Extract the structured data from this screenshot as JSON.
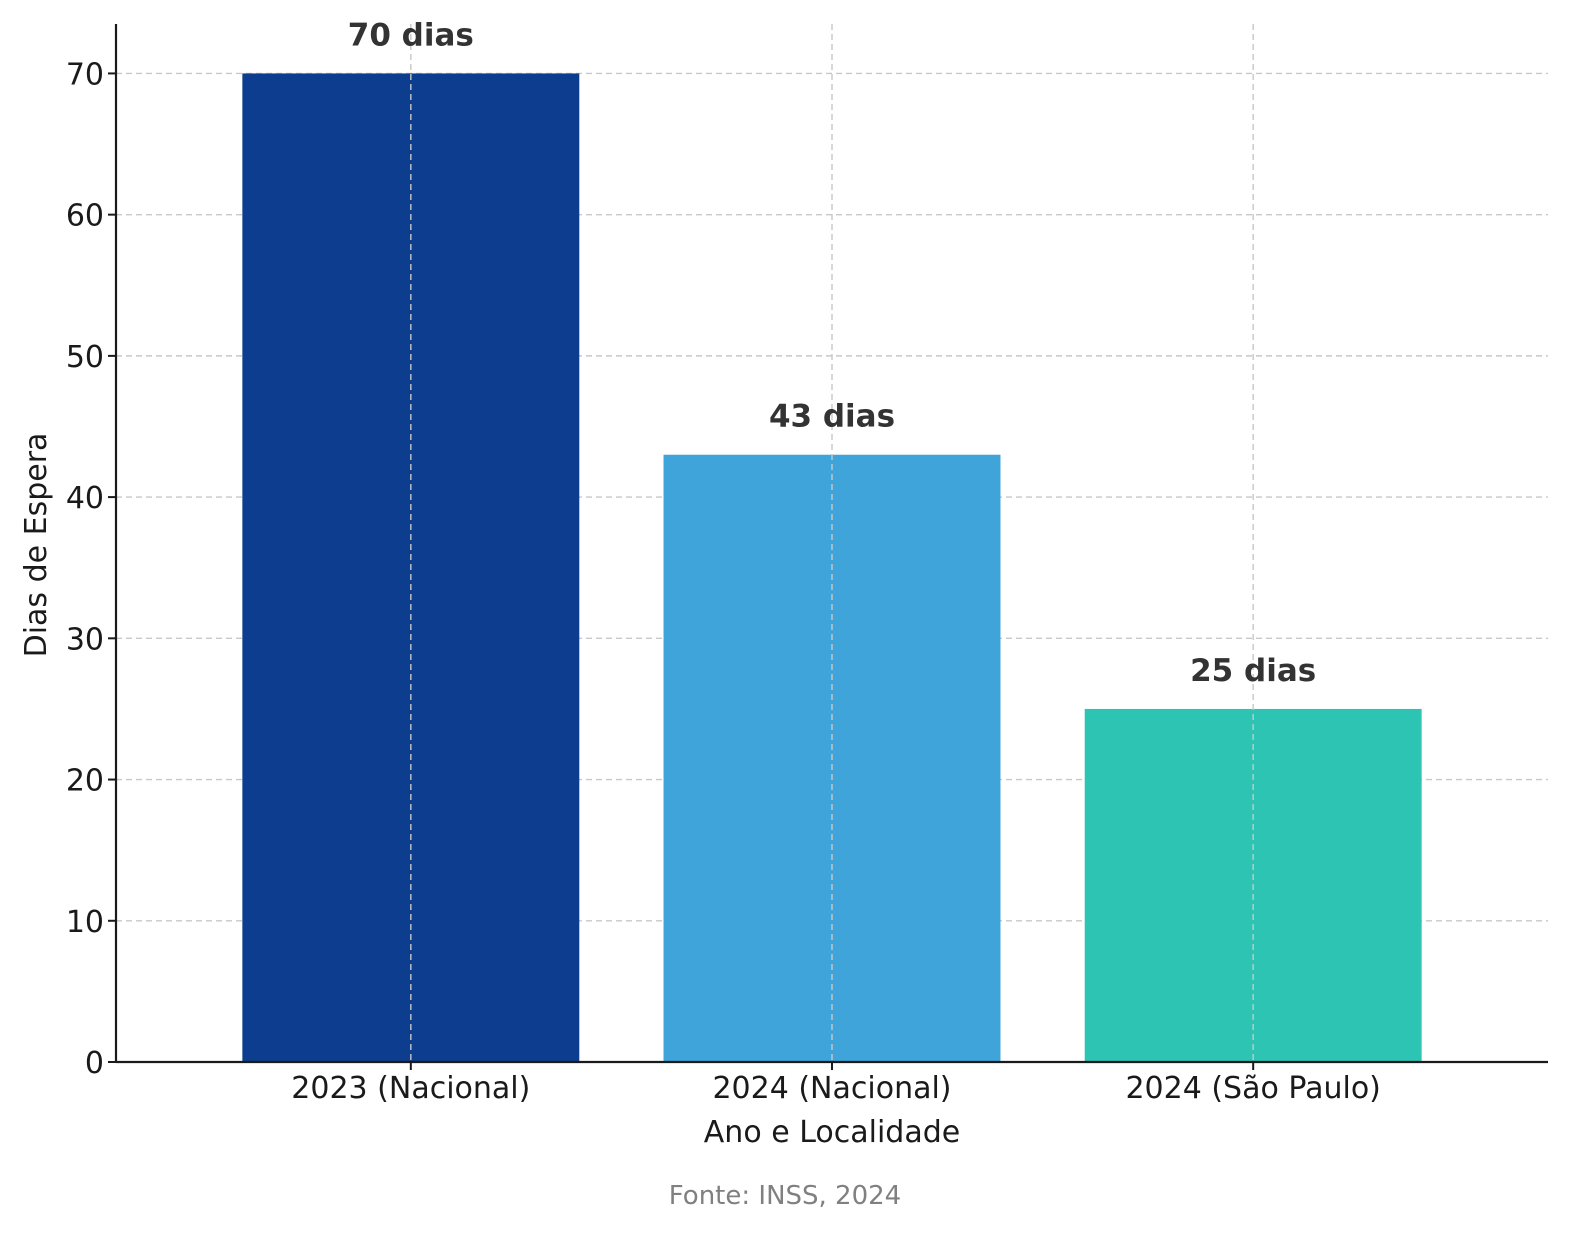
{
  "chart_data": {
    "type": "bar",
    "title": "",
    "xlabel": "Ano e Localidade",
    "ylabel": "Dias de Espera",
    "categories": [
      "2023 (Nacional)",
      "2024 (Nacional)",
      "2024 (São Paulo)"
    ],
    "values": [
      70,
      43,
      25
    ],
    "value_labels": [
      "70 dias",
      "43 dias",
      "25 dias"
    ],
    "bar_colors": [
      "#0c3d8f",
      "#3ea4d9",
      "#2ec4b4"
    ],
    "ylim": [
      0,
      73.5
    ],
    "yticks": [
      0,
      10,
      20,
      30,
      40,
      50,
      60,
      70
    ],
    "grid": true,
    "source_note": "Fonte: INSS, 2024"
  }
}
